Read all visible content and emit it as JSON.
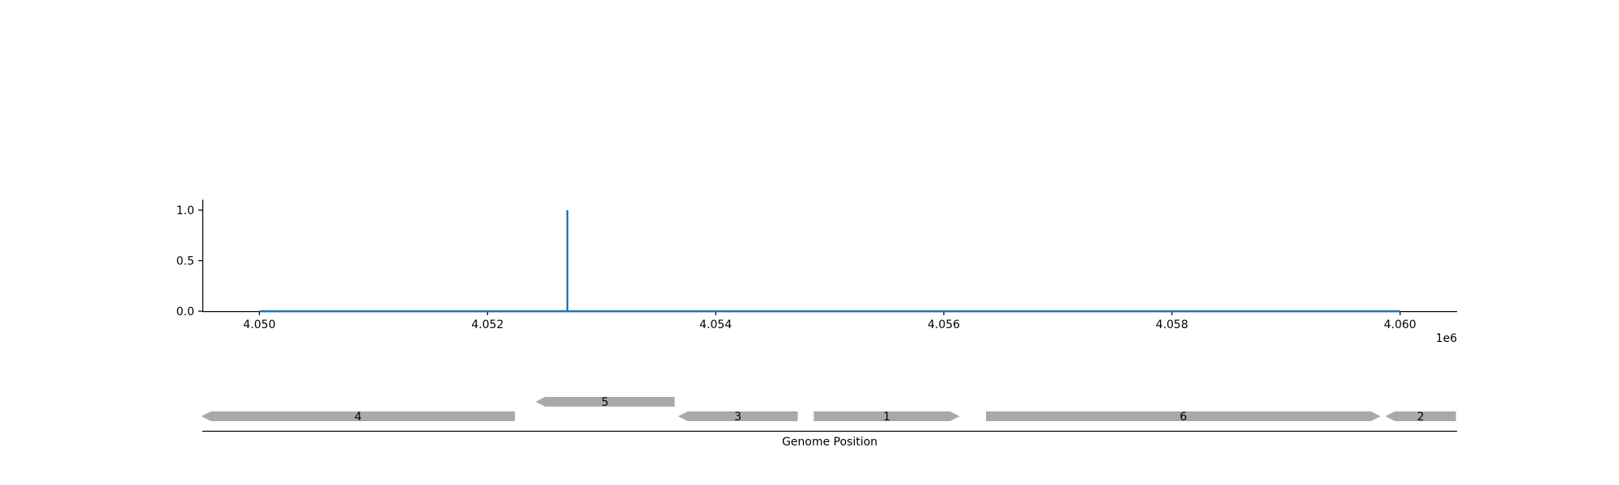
{
  "chart_data": {
    "type": "line",
    "title": "",
    "xlabel": "",
    "ylabel": "",
    "x_scale_label": "1e6",
    "xlim": [
      4049500,
      4060500
    ],
    "ylim": [
      0,
      1.1
    ],
    "x_ticks": [
      4050000,
      4052000,
      4054000,
      4056000,
      4058000,
      4060000
    ],
    "x_tick_labels": [
      "4.050",
      "4.052",
      "4.054",
      "4.056",
      "4.058",
      "4.060"
    ],
    "y_ticks": [
      0,
      0.5,
      1
    ],
    "y_tick_labels": [
      "0.0",
      "0.5",
      "1.0"
    ],
    "grid": false,
    "series": [
      {
        "color": "#1f77b4",
        "x": [
          4050000,
          4052700,
          4052700,
          4052700,
          4060000
        ],
        "y": [
          0,
          0,
          1,
          0,
          0
        ]
      }
    ]
  },
  "gene_track": {
    "xlabel": "Genome Position",
    "color": "#a9a9a9",
    "genes": [
      {
        "label": "4",
        "start": 4049490,
        "end": 4052240,
        "strand": "-",
        "row": 0
      },
      {
        "label": "5",
        "start": 4052420,
        "end": 4053640,
        "strand": "-",
        "row": 1
      },
      {
        "label": "3",
        "start": 4053670,
        "end": 4054720,
        "strand": "-",
        "row": 0
      },
      {
        "label": "1",
        "start": 4054860,
        "end": 4056140,
        "strand": "+",
        "row": 0
      },
      {
        "label": "6",
        "start": 4056370,
        "end": 4059830,
        "strand": "+",
        "row": 0
      },
      {
        "label": "2",
        "start": 4059870,
        "end": 4060490,
        "strand": "-",
        "row": 0
      }
    ]
  }
}
